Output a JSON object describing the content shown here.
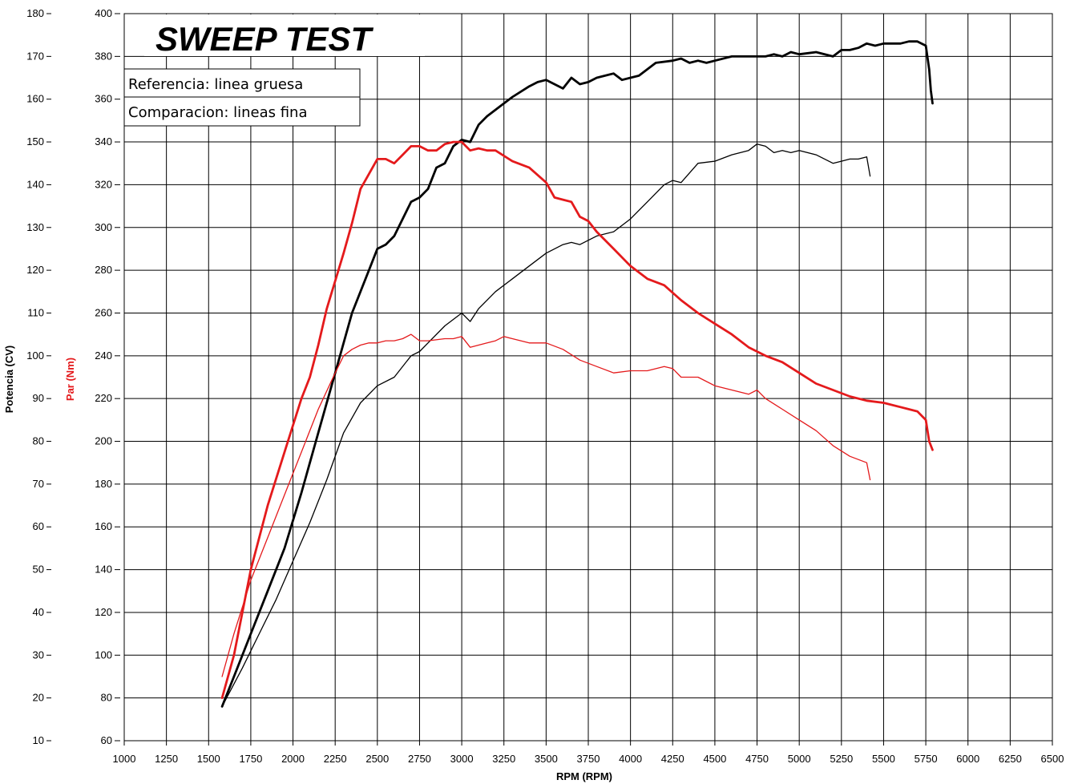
{
  "chart_data": {
    "type": "line",
    "title": "SWEEP TEST",
    "legend": {
      "placement": "top-left",
      "lines": [
        "Referencia: linea gruesa",
        "Comparacion: lineas fina"
      ]
    },
    "xlabel": "RPM (RPM)",
    "ylabel_left": "Potencia (CV)",
    "ylabel_right": "Par (Nm)",
    "xlim": [
      1000,
      6500
    ],
    "ylim_power": [
      10,
      180
    ],
    "ylim_torque": [
      60,
      400
    ],
    "x_ticks": [
      "1000",
      "1250",
      "1500",
      "1750",
      "2000",
      "2250",
      "2500",
      "2750",
      "3000",
      "3250",
      "3500",
      "3750",
      "4000",
      "4250",
      "4500",
      "4750",
      "5000",
      "5250",
      "5500",
      "5750",
      "6000",
      "6250",
      "6500"
    ],
    "power_ticks": [
      "180",
      "170",
      "160",
      "150",
      "140",
      "130",
      "120",
      "110",
      "100",
      "90",
      "80",
      "70",
      "60",
      "50",
      "40",
      "30",
      "20",
      "10"
    ],
    "torque_ticks": [
      "400",
      "380",
      "360",
      "340",
      "320",
      "300",
      "280",
      "260",
      "240",
      "220",
      "200",
      "180",
      "160",
      "140",
      "120",
      "100",
      "80",
      "60"
    ],
    "colors": {
      "power": "#000000",
      "torque": "#e41a1c"
    },
    "series": [
      {
        "axis": "power",
        "style": "thick",
        "x": [
          1580,
          1650,
          1750,
          1850,
          1950,
          2050,
          2150,
          2250,
          2350,
          2450,
          2500,
          2550,
          2600,
          2700,
          2750,
          2800,
          2850,
          2900,
          2950,
          3000,
          3050,
          3100,
          3150,
          3250,
          3300,
          3400,
          3450,
          3500,
          3600,
          3650,
          3700,
          3750,
          3800,
          3900,
          3950,
          4000,
          4050,
          4100,
          4150,
          4250,
          4300,
          4350,
          4400,
          4450,
          4500,
          4600,
          4700,
          4800,
          4850,
          4900,
          4950,
          5000,
          5100,
          5200,
          5250,
          5300,
          5350,
          5400,
          5450,
          5500,
          5600,
          5650,
          5700,
          5750,
          5770,
          5780,
          5790
        ],
        "y": [
          18,
          25,
          35,
          45,
          55,
          68,
          82,
          96,
          110,
          120,
          125,
          126,
          128,
          136,
          137,
          139,
          144,
          145,
          149,
          150.5,
          150,
          154,
          156,
          159,
          160.5,
          163,
          164,
          164.5,
          162.5,
          165,
          163.5,
          164,
          165,
          166,
          164.5,
          165,
          165.5,
          167,
          168.5,
          169,
          169.5,
          168.5,
          169,
          168.5,
          169,
          170,
          170,
          170,
          170.5,
          170,
          171,
          170.5,
          171,
          170,
          171.5,
          171.5,
          172,
          173,
          172.5,
          173,
          173,
          173.5,
          173.5,
          172.5,
          167,
          162,
          159
        ]
      },
      {
        "axis": "power",
        "style": "thin",
        "x": [
          1580,
          1700,
          1800,
          1900,
          2000,
          2100,
          2200,
          2300,
          2400,
          2500,
          2600,
          2700,
          2750,
          2800,
          2900,
          3000,
          3050,
          3100,
          3200,
          3300,
          3400,
          3500,
          3600,
          3650,
          3700,
          3800,
          3900,
          4000,
          4100,
          4200,
          4250,
          4300,
          4400,
          4500,
          4600,
          4700,
          4750,
          4800,
          4850,
          4900,
          4950,
          5000,
          5100,
          5200,
          5250,
          5300,
          5350,
          5400,
          5420
        ],
        "y": [
          18,
          27,
          35,
          43,
          52,
          61,
          71,
          82,
          89,
          93,
          95,
          100,
          101,
          103,
          107,
          110,
          108,
          111,
          115,
          118,
          121,
          124,
          126,
          126.5,
          126,
          128,
          129,
          132,
          136,
          140,
          141,
          140.5,
          145,
          145.5,
          147,
          148,
          149.5,
          149,
          147.5,
          148,
          147.5,
          148,
          147,
          145,
          145.5,
          146,
          146,
          146.5,
          142
        ]
      },
      {
        "axis": "torque",
        "style": "thick",
        "x": [
          1580,
          1650,
          1750,
          1850,
          1950,
          2050,
          2100,
          2150,
          2200,
          2250,
          2300,
          2350,
          2400,
          2450,
          2500,
          2550,
          2600,
          2650,
          2700,
          2750,
          2800,
          2850,
          2900,
          2950,
          3000,
          3050,
          3100,
          3150,
          3200,
          3300,
          3400,
          3500,
          3550,
          3600,
          3650,
          3700,
          3750,
          3800,
          3900,
          4000,
          4100,
          4200,
          4300,
          4400,
          4500,
          4600,
          4700,
          4800,
          4900,
          5000,
          5100,
          5200,
          5300,
          5400,
          5500,
          5600,
          5700,
          5750,
          5770,
          5790
        ],
        "y": [
          80,
          100,
          140,
          170,
          195,
          220,
          230,
          245,
          262,
          275,
          288,
          302,
          318,
          325,
          332,
          332,
          330,
          334,
          338,
          338,
          336,
          336,
          339,
          340,
          340,
          336,
          337,
          336,
          336,
          331,
          328,
          321,
          314,
          313,
          312,
          305,
          303,
          298,
          290,
          282,
          276,
          273,
          266,
          260,
          255,
          250,
          244,
          240,
          237,
          232,
          227,
          224,
          221,
          219,
          218,
          216,
          214,
          210,
          200,
          196
        ]
      },
      {
        "axis": "torque",
        "style": "thin",
        "x": [
          1580,
          1650,
          1750,
          1850,
          1950,
          2050,
          2150,
          2250,
          2300,
          2350,
          2400,
          2450,
          2500,
          2550,
          2600,
          2650,
          2700,
          2750,
          2800,
          2900,
          2950,
          3000,
          3050,
          3100,
          3150,
          3200,
          3250,
          3300,
          3400,
          3500,
          3600,
          3700,
          3800,
          3900,
          4000,
          4100,
          4200,
          4250,
          4300,
          4400,
          4500,
          4600,
          4700,
          4750,
          4800,
          4900,
          5000,
          5100,
          5200,
          5300,
          5400,
          5420
        ],
        "y": [
          90,
          110,
          135,
          155,
          175,
          195,
          215,
          232,
          240,
          243,
          245,
          246,
          246,
          247,
          247,
          248,
          250,
          247,
          247,
          248,
          248,
          249,
          244,
          245,
          246,
          247,
          249,
          248,
          246,
          246,
          243,
          238,
          235,
          232,
          233,
          233,
          235,
          234,
          230,
          230,
          226,
          224,
          222,
          224,
          220,
          215,
          210,
          205,
          198,
          193,
          190,
          182
        ]
      }
    ]
  }
}
